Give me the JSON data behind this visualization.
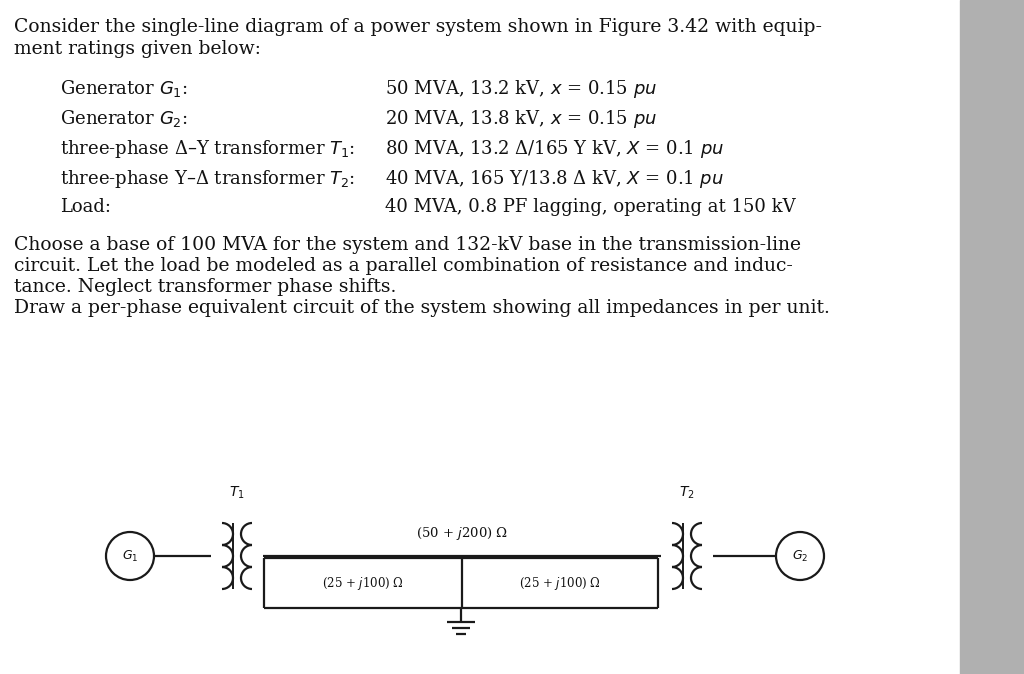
{
  "bg_color": "#ffffff",
  "page_bg": "#d0d0d0",
  "text_color": "#111111",
  "title_lines": [
    "Consider the single-line diagram of a power system shown in Figure 3.42 with equip-",
    "ment ratings given below:"
  ],
  "equipment": [
    {
      "label": "Generator $G_1$:",
      "value": "50 MVA, 13.2 kV, $x$ = 0.15 $pu$"
    },
    {
      "label": "Generator $G_2$:",
      "value": "20 MVA, 13.8 kV, $x$ = 0.15 $pu$"
    },
    {
      "label": "three-phase Δ–Y transformer $T_1$:",
      "value": "80 MVA, 13.2 Δ/165 Y kV, $X$ = 0.1 $pu$"
    },
    {
      "label": "three-phase Y–Δ transformer $T_2$:",
      "value": "40 MVA, 165 Y/13.8 Δ kV, $X$ = 0.1 $pu$"
    },
    {
      "label": "Load:",
      "value": "40 MVA, 0.8 PF lagging, operating at 150 kV"
    }
  ],
  "body_lines": [
    "Choose a base of 100 MVA for the system and 132-kV base in the transmission-line",
    "circuit. Let the load be modeled as a parallel combination of resistance and induc-",
    "tance. Neglect transformer phase shifts.",
    "Draw a per-phase equivalent circuit of the system showing all impedances in per unit."
  ],
  "circuit": {
    "G1_label": "$G_1$",
    "G2_label": "$G_2$",
    "T1_label": "$T_1$",
    "T2_label": "$T_2$",
    "series_impedance": "(50 + $j$200) Ω",
    "shunt_left": "(25 + $j$100) Ω",
    "shunt_right": "(25 + $j$100) Ω"
  }
}
